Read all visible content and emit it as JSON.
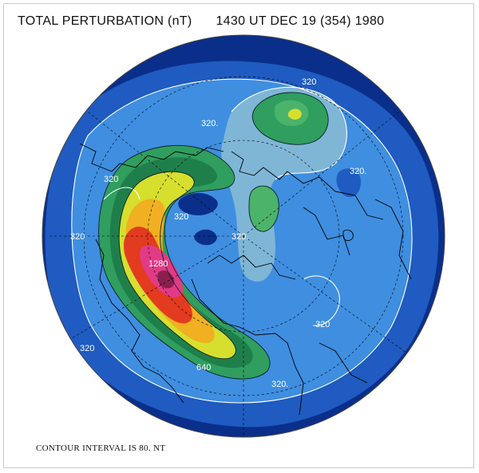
{
  "title": {
    "label": "TOTAL PERTURBATION (nT)",
    "timestamp": "1430 UT DEC 19 (354) 1980"
  },
  "footer": {
    "contour_note": "CONTOUR INTERVAL IS  80. NT"
  },
  "contour_labels": {
    "c1": "320",
    "c2": "320.",
    "c3": "320",
    "c4": "320",
    "c5": "320",
    "c6": "1280",
    "c7": "320.",
    "c8": "320.",
    "c9": "320",
    "c10": "320",
    "c11": "320.",
    "c12": "640"
  },
  "colors": {
    "level_0": "#0a2f8a",
    "level_1": "#1f5bc0",
    "level_2": "#3f8ee0",
    "level_3": "#7fb6d6",
    "level_4": "#2f9e5f",
    "level_5": "#d6df2e",
    "level_6": "#f0b021",
    "level_7": "#e23b1f",
    "level_8": "#e23b86",
    "level_9": "#8a1f4f"
  }
}
